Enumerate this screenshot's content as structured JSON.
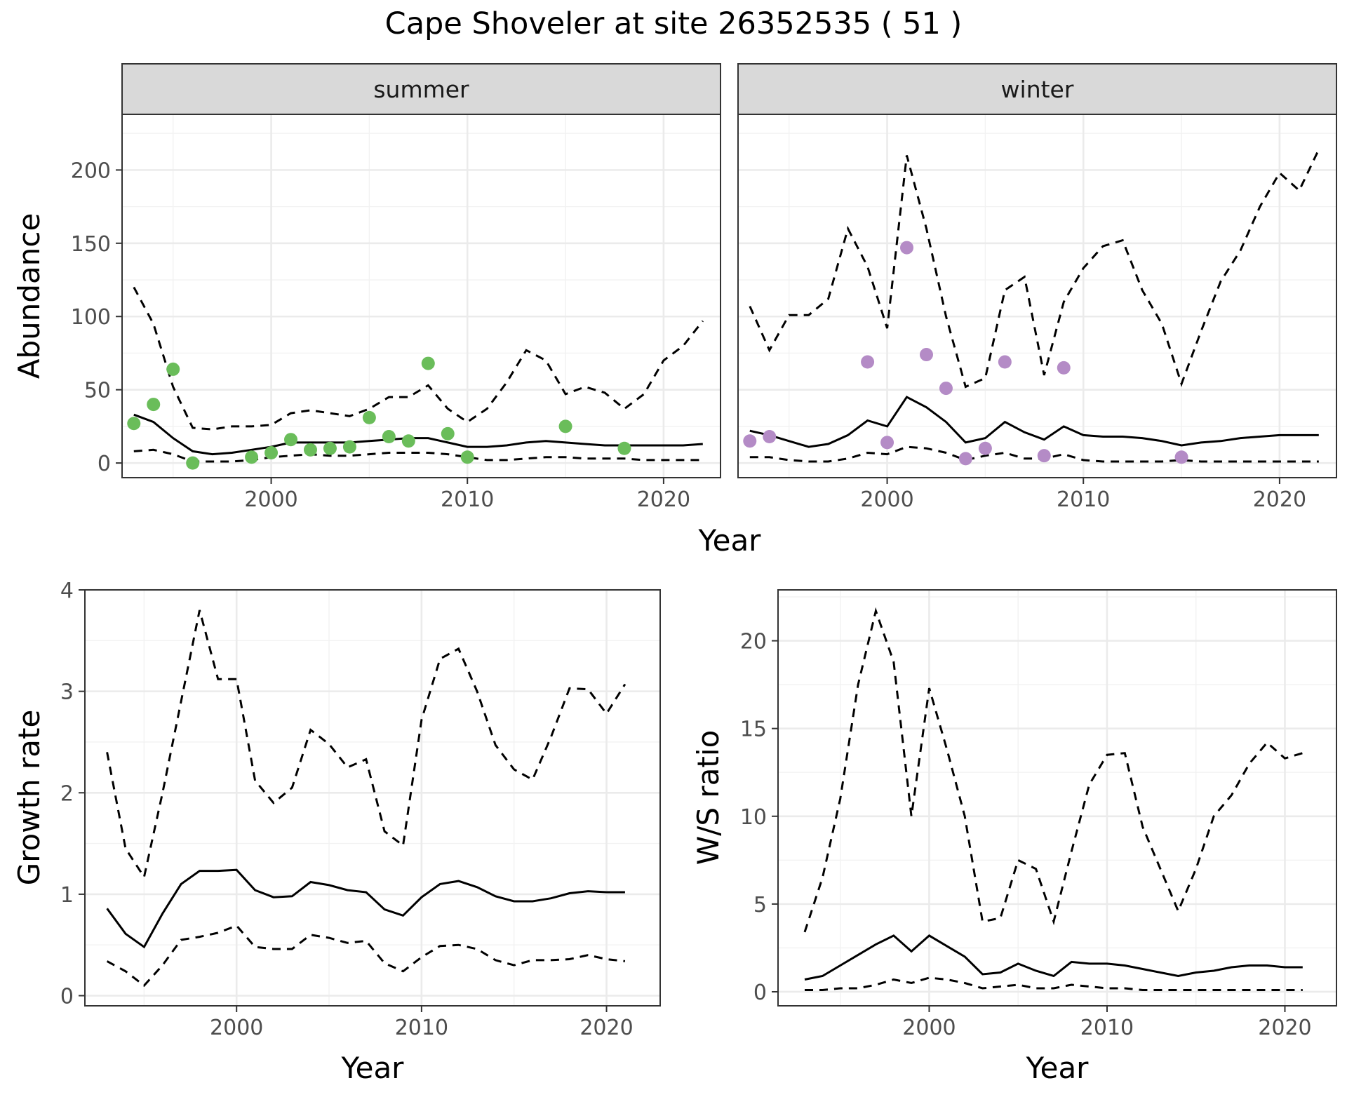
{
  "figure": {
    "title": "Cape Shoveler at site 26352535 ( 51 )"
  },
  "chart_data": [
    {
      "id": "summer",
      "type": "line",
      "strip": "summer",
      "xlabel": "",
      "ylabel": "Abundance",
      "xlim": [
        1992.4,
        2022.9
      ],
      "ylim": [
        -10,
        238
      ],
      "xticks": [
        2000,
        2010,
        2020
      ],
      "yticks": [
        0,
        50,
        100,
        150,
        200
      ],
      "point_color": "#6abd5a",
      "grid": true,
      "series": [
        {
          "style": "solid",
          "x": [
            1993,
            1994,
            1995,
            1996,
            1997,
            1998,
            1999,
            2000,
            2001,
            2002,
            2003,
            2004,
            2005,
            2006,
            2007,
            2008,
            2009,
            2010,
            2011,
            2012,
            2013,
            2014,
            2015,
            2016,
            2017,
            2018,
            2019,
            2020,
            2021,
            2022
          ],
          "values": [
            33,
            28,
            17,
            8,
            6,
            7,
            9,
            11,
            14,
            14,
            14,
            14,
            15,
            16,
            17,
            17,
            14,
            11,
            11,
            12,
            14,
            15,
            14,
            13,
            12,
            12,
            12,
            12,
            12,
            13
          ]
        },
        {
          "style": "dashed",
          "x": [
            1993,
            1994,
            1995,
            1996,
            1997,
            1998,
            1999,
            2000,
            2001,
            2002,
            2003,
            2004,
            2005,
            2006,
            2007,
            2008,
            2009,
            2010,
            2011,
            2012,
            2013,
            2014,
            2015,
            2016,
            2017,
            2018,
            2019,
            2020,
            2021,
            2022
          ],
          "values": [
            120,
            95,
            52,
            24,
            23,
            25,
            25,
            26,
            34,
            36,
            34,
            32,
            37,
            45,
            45,
            53,
            37,
            28,
            37,
            55,
            77,
            70,
            47,
            52,
            48,
            37,
            47,
            70,
            80,
            97
          ]
        },
        {
          "style": "dashed",
          "x": [
            1993,
            1994,
            1995,
            1996,
            1997,
            1998,
            1999,
            2000,
            2001,
            2002,
            2003,
            2004,
            2005,
            2006,
            2007,
            2008,
            2009,
            2010,
            2011,
            2012,
            2013,
            2014,
            2015,
            2016,
            2017,
            2018,
            2019,
            2020,
            2021,
            2022
          ],
          "values": [
            8,
            9,
            6,
            1,
            1,
            1,
            2,
            4,
            5,
            6,
            5,
            5,
            6,
            7,
            7,
            7,
            6,
            4,
            2,
            2,
            3,
            4,
            4,
            3,
            3,
            3,
            2,
            2,
            2,
            2
          ]
        }
      ],
      "points": {
        "x": [
          1993,
          1994,
          1995,
          1996,
          1999,
          2000,
          2001,
          2002,
          2003,
          2004,
          2005,
          2006,
          2007,
          2008,
          2009,
          2010,
          2015,
          2018
        ],
        "values": [
          27,
          40,
          64,
          0,
          4,
          7,
          16,
          9,
          10,
          11,
          31,
          18,
          15,
          68,
          20,
          4,
          25,
          10
        ]
      }
    },
    {
      "id": "winter",
      "type": "line",
      "strip": "winter",
      "xlabel": "",
      "ylabel": "",
      "xlim": [
        1992.4,
        2022.9
      ],
      "ylim": [
        -10,
        238
      ],
      "xticks": [
        2000,
        2010,
        2020
      ],
      "yticks": [
        0,
        50,
        100,
        150,
        200
      ],
      "point_color": "#b48bc6",
      "grid": true,
      "series": [
        {
          "style": "solid",
          "x": [
            1993,
            1994,
            1995,
            1996,
            1997,
            1998,
            1999,
            2000,
            2001,
            2002,
            2003,
            2004,
            2005,
            2006,
            2007,
            2008,
            2009,
            2010,
            2011,
            2012,
            2013,
            2014,
            2015,
            2016,
            2017,
            2018,
            2019,
            2020,
            2021,
            2022
          ],
          "values": [
            22,
            19,
            15,
            11,
            13,
            19,
            29,
            25,
            45,
            38,
            28,
            14,
            17,
            28,
            21,
            16,
            25,
            19,
            18,
            18,
            17,
            15,
            12,
            14,
            15,
            17,
            18,
            19,
            19,
            19
          ]
        },
        {
          "style": "dashed",
          "x": [
            1993,
            1994,
            1995,
            1996,
            1997,
            1998,
            1999,
            2000,
            2001,
            2002,
            2003,
            2004,
            2005,
            2006,
            2007,
            2008,
            2009,
            2010,
            2011,
            2012,
            2013,
            2014,
            2015,
            2016,
            2017,
            2018,
            2019,
            2020,
            2021,
            2022
          ],
          "values": [
            107,
            77,
            101,
            101,
            112,
            160,
            134,
            92,
            210,
            160,
            100,
            52,
            58,
            118,
            127,
            60,
            110,
            133,
            148,
            152,
            118,
            95,
            54,
            90,
            124,
            145,
            175,
            198,
            186,
            214
          ]
        },
        {
          "style": "dashed",
          "x": [
            1993,
            1994,
            1995,
            1996,
            1997,
            1998,
            1999,
            2000,
            2001,
            2002,
            2003,
            2004,
            2005,
            2006,
            2007,
            2008,
            2009,
            2010,
            2011,
            2012,
            2013,
            2014,
            2015,
            2016,
            2017,
            2018,
            2019,
            2020,
            2021,
            2022
          ],
          "values": [
            4,
            4,
            2,
            1,
            1,
            3,
            7,
            6,
            11,
            10,
            7,
            2,
            5,
            7,
            3,
            3,
            6,
            2,
            1,
            1,
            1,
            1,
            2,
            1,
            1,
            1,
            1,
            1,
            1,
            1
          ]
        }
      ],
      "points": {
        "x": [
          1993,
          1994,
          1999,
          2000,
          2001,
          2002,
          2003,
          2004,
          2005,
          2006,
          2008,
          2009,
          2015
        ],
        "values": [
          15,
          18,
          69,
          14,
          147,
          74,
          51,
          3,
          10,
          69,
          5,
          65,
          4
        ]
      }
    },
    {
      "id": "growth",
      "type": "line",
      "xlabel": "Year",
      "ylabel": "Growth rate",
      "xlim": [
        1991.8,
        2022.9
      ],
      "ylim": [
        -0.1,
        4.0
      ],
      "xticks": [
        2000,
        2010,
        2020
      ],
      "yticks": [
        0,
        1,
        2,
        3,
        4
      ],
      "grid": true,
      "series": [
        {
          "style": "solid",
          "x": [
            1993,
            1994,
            1995,
            1996,
            1997,
            1998,
            1999,
            2000,
            2001,
            2002,
            2003,
            2004,
            2005,
            2006,
            2007,
            2008,
            2009,
            2010,
            2011,
            2012,
            2013,
            2014,
            2015,
            2016,
            2017,
            2018,
            2019,
            2020,
            2021
          ],
          "values": [
            0.86,
            0.61,
            0.48,
            0.81,
            1.1,
            1.23,
            1.23,
            1.24,
            1.04,
            0.97,
            0.98,
            1.12,
            1.09,
            1.04,
            1.02,
            0.85,
            0.79,
            0.97,
            1.1,
            1.13,
            1.07,
            0.98,
            0.93,
            0.93,
            0.96,
            1.01,
            1.03,
            1.02,
            1.02
          ]
        },
        {
          "style": "dashed",
          "x": [
            1993,
            1994,
            1995,
            1996,
            1997,
            1998,
            1999,
            2000,
            2001,
            2002,
            2003,
            2004,
            2005,
            2006,
            2007,
            2008,
            2009,
            2010,
            2011,
            2012,
            2013,
            2014,
            2015,
            2016,
            2017,
            2018,
            2019,
            2020,
            2021
          ],
          "values": [
            2.4,
            1.45,
            1.17,
            2.0,
            2.9,
            3.8,
            3.12,
            3.12,
            2.12,
            1.9,
            2.05,
            2.62,
            2.48,
            2.25,
            2.33,
            1.62,
            1.48,
            2.72,
            3.32,
            3.42,
            3.0,
            2.47,
            2.23,
            2.13,
            2.55,
            3.03,
            3.02,
            2.78,
            3.07
          ]
        },
        {
          "style": "dashed",
          "x": [
            1993,
            1994,
            1995,
            1996,
            1997,
            1998,
            1999,
            2000,
            2001,
            2002,
            2003,
            2004,
            2005,
            2006,
            2007,
            2008,
            2009,
            2010,
            2011,
            2012,
            2013,
            2014,
            2015,
            2016,
            2017,
            2018,
            2019,
            2020,
            2021
          ],
          "values": [
            0.34,
            0.24,
            0.1,
            0.3,
            0.55,
            0.58,
            0.62,
            0.69,
            0.48,
            0.46,
            0.46,
            0.6,
            0.57,
            0.52,
            0.54,
            0.32,
            0.24,
            0.38,
            0.49,
            0.5,
            0.46,
            0.35,
            0.3,
            0.35,
            0.35,
            0.36,
            0.4,
            0.36,
            0.34
          ]
        }
      ]
    },
    {
      "id": "ratio",
      "type": "line",
      "xlabel": "Year",
      "ylabel": "W/S ratio",
      "xlim": [
        1991.5,
        2022.9
      ],
      "ylim": [
        -0.8,
        22.9
      ],
      "xticks": [
        2000,
        2010,
        2020
      ],
      "yticks": [
        0,
        5,
        10,
        15,
        20
      ],
      "grid": true,
      "series": [
        {
          "style": "solid",
          "x": [
            1993,
            1994,
            1995,
            1996,
            1997,
            1998,
            1999,
            2000,
            2001,
            2002,
            2003,
            2004,
            2005,
            2006,
            2007,
            2008,
            2009,
            2010,
            2011,
            2012,
            2013,
            2014,
            2015,
            2016,
            2017,
            2018,
            2019,
            2020,
            2021
          ],
          "values": [
            0.7,
            0.9,
            1.5,
            2.1,
            2.7,
            3.2,
            2.3,
            3.2,
            2.6,
            2.0,
            1.0,
            1.1,
            1.6,
            1.2,
            0.9,
            1.7,
            1.6,
            1.6,
            1.5,
            1.3,
            1.1,
            0.9,
            1.1,
            1.2,
            1.4,
            1.5,
            1.5,
            1.4,
            1.4
          ]
        },
        {
          "style": "dashed",
          "x": [
            1993,
            1994,
            1995,
            1996,
            1997,
            1998,
            1999,
            2000,
            2001,
            2002,
            2003,
            2004,
            2005,
            2006,
            2007,
            2008,
            2009,
            2010,
            2011,
            2012,
            2013,
            2014,
            2015,
            2016,
            2017,
            2018,
            2019,
            2020,
            2021
          ],
          "values": [
            3.4,
            6.5,
            11.0,
            17.5,
            21.7,
            18.8,
            10.0,
            17.3,
            13.8,
            10.0,
            4.0,
            4.2,
            7.5,
            7.0,
            4.0,
            8.0,
            11.8,
            13.5,
            13.6,
            9.4,
            7.0,
            4.6,
            7.0,
            10.0,
            11.2,
            13.0,
            14.2,
            13.3,
            13.6
          ]
        },
        {
          "style": "dashed",
          "x": [
            1993,
            1994,
            1995,
            1996,
            1997,
            1998,
            1999,
            2000,
            2001,
            2002,
            2003,
            2004,
            2005,
            2006,
            2007,
            2008,
            2009,
            2010,
            2011,
            2012,
            2013,
            2014,
            2015,
            2016,
            2017,
            2018,
            2019,
            2020,
            2021
          ],
          "values": [
            0.1,
            0.1,
            0.2,
            0.2,
            0.4,
            0.7,
            0.5,
            0.8,
            0.7,
            0.5,
            0.2,
            0.3,
            0.4,
            0.2,
            0.2,
            0.4,
            0.3,
            0.2,
            0.2,
            0.1,
            0.1,
            0.1,
            0.1,
            0.1,
            0.1,
            0.1,
            0.1,
            0.1,
            0.1
          ]
        }
      ]
    }
  ],
  "shared_labels": {
    "top_xlabel": "Year"
  }
}
